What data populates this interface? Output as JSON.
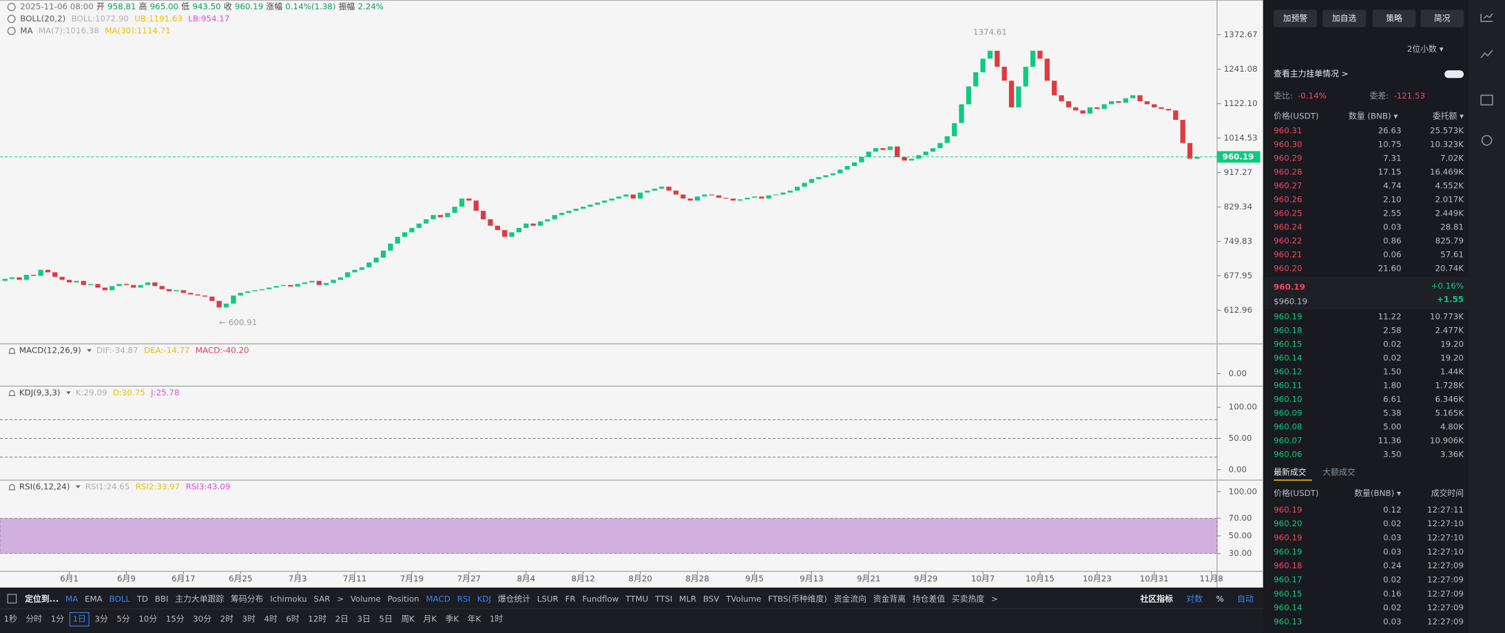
{
  "header": {
    "rows": [
      [
        "2025-11-06 08:00",
        "开",
        "958.81",
        "高",
        "965.00",
        "低",
        "943.50",
        "收",
        "960.19",
        "涨幅",
        "0.14%(1.38)",
        "振幅",
        "2.24%"
      ],
      [
        {
          "text": "BOLL(20,2)",
          "color": "#555555"
        },
        {
          "text": "BOLL:1072.90",
          "color": "#b0b0b0"
        },
        {
          "text": "UB:1191.63",
          "color": "#e6c200"
        },
        {
          "text": "LB:954.17",
          "color": "#d94fd9"
        }
      ],
      [
        {
          "text": "MA",
          "color": "#555555"
        },
        {
          "text": "MA(7):1016.38",
          "color": "#b0b0b0"
        },
        {
          "text": "MA(30):1114.71",
          "color": "#e6c200"
        }
      ]
    ]
  },
  "chart_data": {
    "type": "candlestick",
    "log": true,
    "up_color": "#0ecb81",
    "down_color": "#e03a3e",
    "values": [
      668,
      672,
      675,
      670,
      680,
      678,
      690,
      685,
      676,
      670,
      665,
      668,
      660,
      662,
      655,
      650,
      658,
      662,
      660,
      655,
      660,
      665,
      658,
      652,
      648,
      650,
      645,
      642,
      640,
      638,
      630,
      618,
      625,
      640,
      645,
      648,
      650,
      652,
      655,
      658,
      660,
      657,
      662,
      665,
      668,
      660,
      664,
      670,
      675,
      685,
      690,
      695,
      705,
      715,
      730,
      745,
      760,
      770,
      780,
      790,
      800,
      810,
      805,
      815,
      830,
      850,
      845,
      820,
      800,
      785,
      775,
      760,
      770,
      780,
      790,
      785,
      795,
      800,
      810,
      815,
      820,
      825,
      830,
      835,
      840,
      845,
      850,
      855,
      860,
      850,
      865,
      870,
      875,
      880,
      870,
      860,
      850,
      845,
      855,
      860,
      858,
      852,
      850,
      845,
      848,
      852,
      855,
      850,
      858,
      860,
      865,
      870,
      880,
      890,
      900,
      905,
      910,
      915,
      925,
      935,
      945,
      960,
      975,
      985,
      980,
      990,
      960,
      950,
      955,
      965,
      975,
      985,
      1000,
      1020,
      1060,
      1120,
      1180,
      1230,
      1280,
      1310,
      1250,
      1200,
      1110,
      1180,
      1250,
      1310,
      1280,
      1200,
      1150,
      1130,
      1110,
      1100,
      1090,
      1110,
      1105,
      1120,
      1130,
      1125,
      1140,
      1150,
      1130,
      1120,
      1110,
      1105,
      1100,
      1070,
      1000,
      955,
      960.19
    ],
    "ylim": [
      555.6,
      1518.6
    ],
    "yticks": [
      {
        "value": 1372.67,
        "label": "1372.67"
      },
      {
        "value": 1241.08,
        "label": "1241.08"
      },
      {
        "value": 1122.1,
        "label": "1122.10"
      },
      {
        "value": 1014.53,
        "label": "1014.53"
      },
      {
        "value": 917.27,
        "label": "917.27"
      },
      {
        "value": 829.34,
        "label": "829.34"
      },
      {
        "value": 749.83,
        "label": "749.83"
      },
      {
        "value": 677.95,
        "label": "677.95"
      },
      {
        "value": 612.96,
        "label": "612.96"
      }
    ],
    "xlim": [
      0.3,
      170.8
    ],
    "xticks": [
      {
        "value": 10,
        "label": "6月1"
      },
      {
        "value": 18,
        "label": "6月9"
      },
      {
        "value": 26,
        "label": "6月17"
      },
      {
        "value": 34,
        "label": "6月25"
      },
      {
        "value": 42,
        "label": "7月3"
      },
      {
        "value": 50,
        "label": "7月11"
      },
      {
        "value": 58,
        "label": "7月19"
      },
      {
        "value": 66,
        "label": "7月27"
      },
      {
        "value": 74,
        "label": "8月4"
      },
      {
        "value": 82,
        "label": "8月12"
      },
      {
        "value": 90,
        "label": "8月20"
      },
      {
        "value": 98,
        "label": "8月28"
      },
      {
        "value": 106,
        "label": "9月5"
      },
      {
        "value": 114,
        "label": "9月13"
      },
      {
        "value": 122,
        "label": "9月21"
      },
      {
        "value": 130,
        "label": "9月29"
      },
      {
        "value": 138,
        "label": "10月7"
      },
      {
        "value": 146,
        "label": "10月15"
      },
      {
        "value": 154,
        "label": "10月23"
      },
      {
        "value": 162,
        "label": "10月31"
      },
      {
        "value": 170,
        "label": "11月8"
      }
    ],
    "annotations": [
      {
        "label": "1374.61",
        "value": 1374.61,
        "x": 139
      },
      {
        "label": "← 600.91",
        "value": 600.91,
        "x": 31
      }
    ]
  },
  "macd": {
    "title": "MACD(12,26,9)",
    "labels": [
      {
        "text": "DIF:-34.87",
        "color": "#b0b0b0"
      },
      {
        "text": "DEA:-14.77",
        "color": "#e6c200"
      },
      {
        "text": "MACD:-40.20",
        "color": "#e5405e"
      }
    ],
    "ylim": [
      -65,
      155
    ],
    "yticks": [
      {
        "value": 0,
        "label": "0.00"
      }
    ]
  },
  "kdj": {
    "title": "KDJ(9,3,3)",
    "labels": [
      {
        "text": "K:29.09",
        "color": "#b0b0b0"
      },
      {
        "text": "D:30.75",
        "color": "#e6c200"
      },
      {
        "text": "J:25.78",
        "color": "#d94fd9"
      }
    ],
    "ylim": [
      -16.9,
      133.8
    ],
    "yticks": [
      {
        "value": 100,
        "label": "100.00"
      },
      {
        "value": 50,
        "label": "50.00"
      },
      {
        "value": 0,
        "label": "0.00"
      }
    ],
    "levels": [
      80,
      50,
      20
    ]
  },
  "rsi": {
    "title": "RSI(6,12,24)",
    "labels": [
      {
        "text": "RSI1:24.65",
        "color": "#b0b0b0"
      },
      {
        "text": "RSI2:33.97",
        "color": "#e6c200"
      },
      {
        "text": "RSI3:43.09",
        "color": "#d94fd9"
      }
    ],
    "ylim": [
      9.9,
      113
    ],
    "yticks": [
      {
        "value": 100,
        "label": "100.00"
      },
      {
        "value": 70,
        "label": "70.00"
      },
      {
        "value": 50,
        "label": "50.00"
      },
      {
        "value": 30,
        "label": "30.00"
      }
    ],
    "band": [
      30,
      70
    ]
  },
  "toolbar": {
    "left": [
      "定位到...",
      "MA",
      "EMA",
      "BOLL",
      "TD",
      "BBI",
      "主力大单跟踪",
      "筹码分布",
      "Ichimoku",
      "SAR",
      ">",
      "Volume",
      "Position",
      "MACD",
      "RSI",
      "KDJ",
      "爆仓统计",
      "LSUR",
      "FR",
      "Fundflow",
      "TTMU",
      "TTSI",
      "MLR",
      "BSV",
      "TVolume",
      "FTBS(币种维度)",
      "资金流向",
      "资金背离",
      "持仓差值",
      "买卖热度",
      ">"
    ],
    "active": [
      1,
      3,
      13,
      14,
      15
    ],
    "right": [
      "社区指标",
      "对数",
      "%",
      "自动"
    ],
    "right_active": [
      1,
      3
    ]
  },
  "timeframes": {
    "items": [
      "1秒",
      "分时",
      "1分",
      "1日",
      "3分",
      "5分",
      "10分",
      "15分",
      "30分",
      "2时",
      "3时",
      "4时",
      "6时",
      "12时",
      "2日",
      "3日",
      "5日",
      "周K",
      "月K",
      "季K",
      "年K",
      "1时"
    ],
    "active": 3
  },
  "orderbook": {
    "buttons": [
      "加预警",
      "加自选",
      "策略",
      "简况"
    ],
    "precision": "2位小数 ▾",
    "link": "查看主力挂单情况 >",
    "ratio_label": "委比:",
    "ratio": "-0.14%",
    "diff_label": "委差:",
    "diff": "-121.53",
    "headers": [
      "价格(USDT)",
      "数量 (BNB) ▾",
      "委托额 ▾"
    ],
    "asks": [
      [
        "960.31",
        "26.63",
        "25.573K"
      ],
      [
        "960.30",
        "10.75",
        "10.323K"
      ],
      [
        "960.29",
        "7.31",
        "7.02K"
      ],
      [
        "960.28",
        "17.15",
        "16.469K"
      ],
      [
        "960.27",
        "4.74",
        "4.552K"
      ],
      [
        "960.26",
        "2.10",
        "2.017K"
      ],
      [
        "960.25",
        "2.55",
        "2.449K"
      ],
      [
        "960.24",
        "0.03",
        "28.81"
      ],
      [
        "960.22",
        "0.86",
        "825.79"
      ],
      [
        "960.21",
        "0.06",
        "57.61"
      ],
      [
        "960.20",
        "21.60",
        "20.74K"
      ]
    ],
    "last": "960.19",
    "last_usd": "$960.19",
    "change_pct": "+0.16%",
    "change": "+1.55",
    "bids": [
      [
        "960.19",
        "11.22",
        "10.773K"
      ],
      [
        "960.18",
        "2.58",
        "2.477K"
      ],
      [
        "960.15",
        "0.02",
        "19.20"
      ],
      [
        "960.14",
        "0.02",
        "19.20"
      ],
      [
        "960.12",
        "1.50",
        "1.44K"
      ],
      [
        "960.11",
        "1.80",
        "1.728K"
      ],
      [
        "960.10",
        "6.61",
        "6.346K"
      ],
      [
        "960.09",
        "5.38",
        "5.165K"
      ],
      [
        "960.08",
        "5.00",
        "4.80K"
      ],
      [
        "960.07",
        "11.36",
        "10.906K"
      ],
      [
        "960.06",
        "3.50",
        "3.36K"
      ]
    ]
  },
  "trades": {
    "tabs": [
      "最新成交",
      "大额成交"
    ],
    "headers": [
      "价格(USDT)",
      "数量(BNB) ▾",
      "成交时间"
    ],
    "rows": [
      [
        "960.19",
        "0.12",
        "12:27:11"
      ],
      [
        "960.20",
        "0.02",
        "12:27:10"
      ],
      [
        "960.19",
        "0.03",
        "12:27:10"
      ],
      [
        "960.19",
        "0.03",
        "12:27:10"
      ],
      [
        "960.18",
        "0.24",
        "12:27:09"
      ],
      [
        "960.17",
        "0.02",
        "12:27:09"
      ],
      [
        "960.15",
        "0.16",
        "12:27:09"
      ],
      [
        "960.14",
        "0.02",
        "12:27:09"
      ],
      [
        "960.13",
        "0.03",
        "12:27:09"
      ]
    ],
    "sides": [
      "sell",
      "buy",
      "sell",
      "buy",
      "sell",
      "buy",
      "buy",
      "buy",
      "buy"
    ]
  }
}
